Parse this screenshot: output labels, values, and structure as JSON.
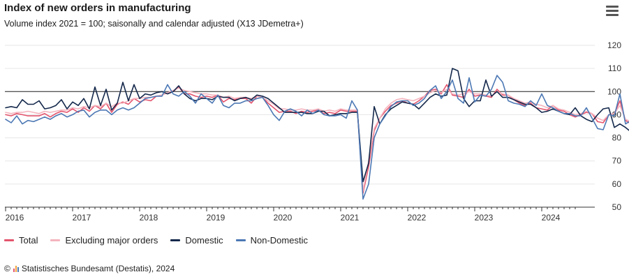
{
  "header": {
    "title": "Index of new orders in manufacturing",
    "subtitle": "Volume index 2021 = 100; saisonally and calendar adjusted (X13 JDemetra+)"
  },
  "credits": {
    "copyright_symbol": "©",
    "text": "Statistisches Bundesamt (Destatis), 2024"
  },
  "chart_data": {
    "type": "line",
    "x_start": "2016-01",
    "x_end": "2024-07",
    "xticks": [
      "2016",
      "2017",
      "2018",
      "2019",
      "2020",
      "2021",
      "2022",
      "2023",
      "2024"
    ],
    "ylim": [
      50,
      120
    ],
    "yticks": [
      50,
      60,
      70,
      80,
      90,
      100,
      110,
      120
    ],
    "reference_line": 100,
    "legend_position": "bottom-left",
    "grid": true,
    "series": [
      {
        "name": "Total",
        "color": "#e4556e",
        "width": 1.6,
        "values": [
          90,
          89.5,
          90.5,
          90,
          89.5,
          89.5,
          89.5,
          90.5,
          89,
          90.5,
          91.5,
          91,
          92.5,
          91,
          93,
          91.5,
          94,
          92.5,
          95,
          91,
          94.5,
          95.5,
          94.5,
          97,
          95.5,
          96.5,
          96,
          98,
          98.5,
          99.5,
          100,
          102,
          99,
          99,
          98,
          97.5,
          98,
          97.5,
          98.5,
          95.5,
          97,
          96.5,
          97,
          97,
          95,
          98,
          97.5,
          95,
          93,
          91,
          91.5,
          91.5,
          90.5,
          91.5,
          91,
          91.5,
          92,
          90.5,
          91,
          90.5,
          92,
          91.5,
          91.5,
          91.5,
          56,
          67.5,
          83,
          88.5,
          91.5,
          94,
          95,
          96,
          95,
          94.5,
          96,
          98,
          100.5,
          101,
          99,
          103,
          98.5,
          98,
          97.5,
          101,
          98,
          98.5,
          98,
          97.5,
          101,
          98.5,
          98.5,
          96.5,
          95,
          94,
          95,
          93,
          92.5,
          92,
          94,
          92,
          91.5,
          90,
          89,
          90,
          91,
          90.5,
          87,
          86.5,
          90,
          90.5,
          96,
          87.5,
          86,
          86.5,
          84.5,
          86,
          85.5,
          84.5,
          85.5,
          93,
          85,
          84,
          83.5,
          83,
          83,
          82,
          85,
          86.5
        ]
      },
      {
        "name": "Excluding major orders",
        "color": "#f4b4be",
        "width": 1.6,
        "values": [
          91,
          90.5,
          91,
          91,
          91.5,
          91,
          90.5,
          91.5,
          91,
          91.5,
          92,
          92,
          93,
          92.5,
          93.5,
          93,
          94,
          93.5,
          95,
          93.5,
          95,
          95,
          96,
          97,
          97,
          97.5,
          97.5,
          98,
          98.5,
          99.5,
          100.5,
          101.5,
          100.5,
          100,
          99.5,
          99,
          99,
          98.5,
          98.5,
          97.5,
          98,
          97,
          97.5,
          97.5,
          97,
          98,
          97.5,
          96,
          94.5,
          92.5,
          92.5,
          92,
          92,
          92.5,
          92,
          92,
          92.5,
          91.5,
          92,
          91.5,
          92.5,
          92,
          92,
          92,
          57,
          70,
          84,
          88.5,
          92.5,
          95,
          96.5,
          97,
          96.5,
          96,
          97,
          98,
          99.5,
          100.5,
          99.5,
          101,
          99,
          98.5,
          99,
          100,
          99,
          99,
          98.5,
          98,
          100,
          99,
          98.5,
          97,
          96,
          95,
          95.5,
          94.5,
          94,
          93,
          94,
          92.5,
          92,
          91,
          90,
          90.5,
          91.5,
          90.5,
          88.5,
          87.5,
          90,
          90.5,
          94,
          88,
          87,
          87,
          86,
          86,
          86,
          85.5,
          86,
          89,
          85.5,
          85,
          84.5,
          84,
          83.5,
          83,
          84.5,
          85.5
        ]
      },
      {
        "name": "Domestic",
        "color": "#14284b",
        "width": 1.6,
        "values": [
          93,
          93.5,
          93,
          96.5,
          94.5,
          94.5,
          96,
          92.5,
          93,
          94,
          96.5,
          92.5,
          95.5,
          94,
          97,
          92.5,
          102,
          94,
          101,
          92,
          95,
          104,
          96,
          103,
          97,
          99,
          98.5,
          99.5,
          100,
          99,
          100,
          102.5,
          99,
          97,
          96,
          97,
          97,
          96.5,
          98,
          97.5,
          97.5,
          96,
          97,
          97.5,
          96.5,
          98.5,
          98,
          97,
          95,
          93,
          91,
          91,
          91,
          91,
          90.5,
          90.5,
          91.5,
          91.5,
          89.5,
          90,
          90.5,
          90.5,
          91,
          91,
          61,
          69,
          93.5,
          86,
          90,
          92.5,
          94,
          95.5,
          95,
          94.5,
          92.5,
          95,
          97.5,
          99,
          98,
          98.5,
          110,
          109,
          97,
          93.5,
          96,
          96,
          105,
          98,
          100,
          97.5,
          97.5,
          96.5,
          95.5,
          94.5,
          94.5,
          93,
          91,
          91.5,
          92.5,
          91.5,
          90.5,
          90,
          93,
          89.5,
          88,
          87,
          90,
          92.5,
          93,
          84.5,
          86,
          84.5,
          82.5,
          83.5,
          83,
          84,
          84,
          92.5,
          82,
          82.5,
          80,
          80,
          80,
          80.5,
          87.5,
          87.5
        ]
      },
      {
        "name": "Non-Domestic",
        "color": "#4c78b4",
        "width": 1.6,
        "values": [
          88,
          86.5,
          89.5,
          86,
          87.5,
          87,
          88,
          89,
          88,
          89.5,
          90.5,
          89,
          90,
          91.5,
          92,
          89,
          91,
          92,
          92,
          90,
          92,
          93,
          92,
          93,
          95,
          97,
          97.5,
          98,
          98,
          103,
          99,
          98,
          100,
          98,
          95,
          99,
          97,
          95,
          98.5,
          94,
          93,
          95,
          95,
          96,
          96,
          97,
          97.5,
          94,
          90,
          87.5,
          91.5,
          92.5,
          91.5,
          89.5,
          92,
          90.5,
          92,
          90,
          89.5,
          89.5,
          90,
          88.5,
          96,
          92,
          53.5,
          60,
          80,
          86,
          89.5,
          93.5,
          95.5,
          96,
          96,
          94,
          95,
          97,
          100.5,
          102.5,
          97,
          100,
          105,
          97,
          95,
          106,
          95.5,
          98.5,
          98,
          101,
          107,
          104,
          96,
          95,
          94.5,
          93.5,
          96,
          94,
          99,
          94,
          93,
          91.5,
          90.5,
          90.5,
          89.5,
          89.5,
          93,
          88.5,
          84,
          83.5,
          90,
          89.5,
          99,
          86,
          87.5,
          84,
          86,
          84.5,
          86,
          84,
          85.5,
          99,
          86,
          87,
          86.5,
          87,
          86,
          85,
          84.5,
          89
        ]
      }
    ]
  }
}
